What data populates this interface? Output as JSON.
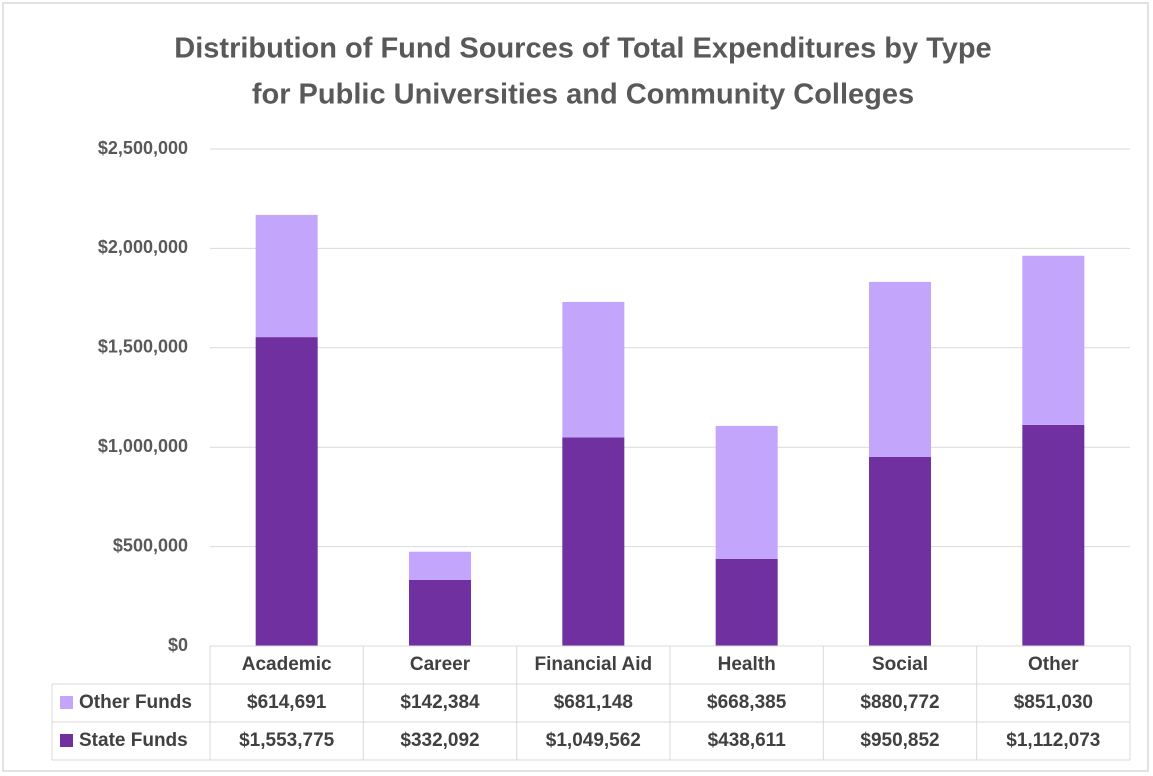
{
  "chart_data": {
    "type": "bar",
    "stacked": true,
    "title": [
      "Distribution of Fund Sources of Total Expenditures by Type",
      "for Public Universities and Community Colleges"
    ],
    "categories": [
      "Academic",
      "Career",
      "Financial Aid",
      "Health",
      "Social",
      "Other"
    ],
    "series": [
      {
        "name": "State Funds",
        "color": "#7030a0",
        "values": [
          1553775,
          332092,
          1049562,
          438611,
          950852,
          1112073
        ],
        "value_labels": [
          "$1,553,775",
          "$332,092",
          "$1,049,562",
          "$438,611",
          "$950,852",
          "$1,112,073"
        ]
      },
      {
        "name": "Other Funds",
        "color": "#c3a6fc",
        "values": [
          614691,
          142384,
          681148,
          668385,
          880772,
          851030
        ],
        "value_labels": [
          "$614,691",
          "$142,384",
          "$681,148",
          "$668,385",
          "$880,772",
          "$851,030"
        ]
      }
    ],
    "ylim": [
      0,
      2500000
    ],
    "yticks": [
      {
        "value": 0,
        "label": "$0"
      },
      {
        "value": 500000,
        "label": "$500,000"
      },
      {
        "value": 1000000,
        "label": "$1,000,000"
      },
      {
        "value": 1500000,
        "label": "$1,500,000"
      },
      {
        "value": 2000000,
        "label": "$2,000,000"
      },
      {
        "value": 2500000,
        "label": "$2,500,000"
      }
    ],
    "grid": true,
    "data_table": true
  }
}
